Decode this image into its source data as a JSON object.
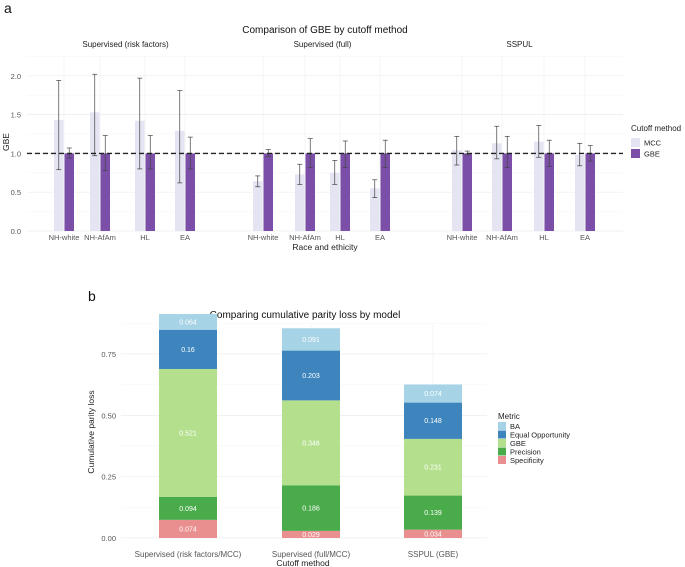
{
  "panel_a_label": "a",
  "panel_b_label": "b",
  "chart_data": [
    {
      "type": "bar",
      "title": "Comparison of GBE by cutoff method",
      "xlabel": "Race and ethicity",
      "ylabel": "GBE",
      "ylim": [
        0,
        2.3
      ],
      "yticks": [
        0.0,
        0.5,
        1.0,
        1.5,
        2.0
      ],
      "ytick_labels": [
        "0.0",
        "0.5",
        "1.0",
        "1.5",
        "2.0"
      ],
      "reference_line": 1.0,
      "legend": {
        "title": "Cutoff method",
        "entries": [
          {
            "name": "MCC",
            "color": "#e4e4f2"
          },
          {
            "name": "GBE",
            "color": "#7b4fa8"
          }
        ]
      },
      "facets": [
        {
          "name": "Supervised (risk factors)",
          "categories": [
            "NH-white",
            "NH-AfAm",
            "HL",
            "EA"
          ],
          "series": [
            {
              "name": "MCC",
              "values": [
                1.43,
                1.53,
                1.42,
                1.29
              ],
              "err_low": [
                0.79,
                0.97,
                0.8,
                0.62
              ],
              "err_high": [
                1.94,
                2.02,
                1.97,
                1.81
              ]
            },
            {
              "name": "GBE",
              "values": [
                1.0,
                1.0,
                1.0,
                1.0
              ],
              "err_low": [
                0.94,
                0.78,
                0.8,
                0.8
              ],
              "err_high": [
                1.07,
                1.23,
                1.23,
                1.21
              ]
            }
          ]
        },
        {
          "name": "Supervised (full)",
          "categories": [
            "NH-white",
            "NH-AfAm",
            "HL",
            "EA"
          ],
          "series": [
            {
              "name": "MCC",
              "values": [
                0.64,
                0.73,
                0.75,
                0.55
              ],
              "err_low": [
                0.57,
                0.6,
                0.6,
                0.43
              ],
              "err_high": [
                0.71,
                0.86,
                0.91,
                0.66
              ]
            },
            {
              "name": "GBE",
              "values": [
                1.0,
                1.0,
                1.0,
                1.0
              ],
              "err_low": [
                0.96,
                0.82,
                0.82,
                0.82
              ],
              "err_high": [
                1.05,
                1.19,
                1.16,
                1.17
              ]
            }
          ]
        },
        {
          "name": "SSPUL",
          "categories": [
            "NH-white",
            "NH-AfAm",
            "HL",
            "EA"
          ],
          "series": [
            {
              "name": "MCC",
              "values": [
                1.04,
                1.13,
                1.15,
                0.98
              ],
              "err_low": [
                0.85,
                0.93,
                0.95,
                0.84
              ],
              "err_high": [
                1.22,
                1.35,
                1.36,
                1.13
              ]
            },
            {
              "name": "GBE",
              "values": [
                1.0,
                1.0,
                1.0,
                1.0
              ],
              "err_low": [
                0.98,
                0.82,
                0.83,
                0.9
              ],
              "err_high": [
                1.03,
                1.22,
                1.17,
                1.1
              ]
            }
          ]
        }
      ]
    },
    {
      "type": "bar",
      "stacked": true,
      "title": "Comparing cumulative parity loss by model",
      "xlabel": "Cutoff method",
      "ylabel": "Cumulative parity loss",
      "ylim": [
        0,
        0.9
      ],
      "yticks": [
        0.0,
        0.25,
        0.5,
        0.75
      ],
      "ytick_labels": [
        "0.00",
        "0.25",
        "0.50",
        "0.75"
      ],
      "categories": [
        "Supervised (risk factors/MCC)",
        "Supervised (full/MCC)",
        "SSPUL (GBE)"
      ],
      "legend": {
        "title": "Metric",
        "entries": [
          {
            "name": "BA",
            "color": "#a6d3e6"
          },
          {
            "name": "Equal Opportunity",
            "color": "#3d85bc"
          },
          {
            "name": "GBE",
            "color": "#b4e08e"
          },
          {
            "name": "Precision",
            "color": "#4aab4b"
          },
          {
            "name": "Specificity",
            "color": "#ea8f8f"
          }
        ]
      },
      "series": [
        {
          "name": "Specificity",
          "values": [
            0.074,
            0.029,
            0.034
          ],
          "labels": [
            "0.074",
            "0.029",
            "0.034"
          ]
        },
        {
          "name": "Precision",
          "values": [
            0.094,
            0.186,
            0.139
          ],
          "labels": [
            "0.094",
            "0.186",
            "0.139"
          ]
        },
        {
          "name": "GBE",
          "values": [
            0.521,
            0.346,
            0.231
          ],
          "labels": [
            "0.521",
            "0.346",
            "0.231"
          ]
        },
        {
          "name": "Equal Opportunity",
          "values": [
            0.16,
            0.203,
            0.148
          ],
          "labels": [
            "0.16",
            "0.203",
            "0.148"
          ]
        },
        {
          "name": "BA",
          "values": [
            0.064,
            0.091,
            0.074
          ],
          "labels": [
            "0.064",
            "0.091",
            "0.074"
          ]
        }
      ]
    }
  ]
}
